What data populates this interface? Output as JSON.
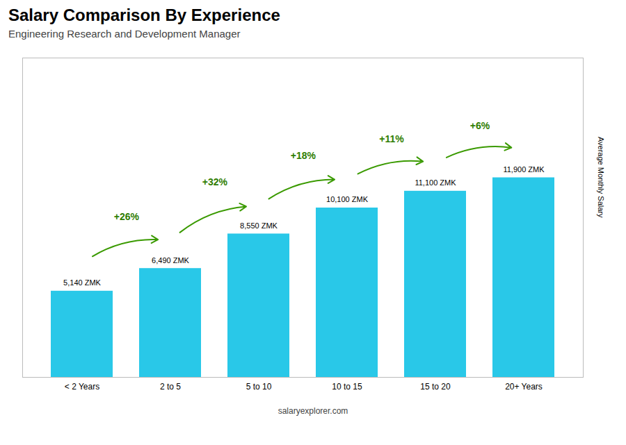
{
  "chart_data": {
    "type": "bar",
    "title": "Salary Comparison By Experience",
    "subtitle": "Engineering Research and Development Manager",
    "ylabel": "Average Monthly Salary",
    "footer": "salaryexplorer.com",
    "categories": [
      "< 2 Years",
      "2 to 5",
      "5 to 10",
      "10 to 15",
      "15 to 20",
      "20+ Years"
    ],
    "values": [
      5140,
      6490,
      8550,
      10100,
      11100,
      11900
    ],
    "value_labels": [
      "5,140 ZMK",
      "6,490 ZMK",
      "8,550 ZMK",
      "10,100 ZMK",
      "11,100 ZMK",
      "11,900 ZMK"
    ],
    "data_labels": true,
    "annotations": [
      "+26%",
      "+32%",
      "+18%",
      "+11%",
      "+6%"
    ],
    "color": "#29c8e8",
    "ylim": [
      0,
      19040
    ],
    "tick_labels": "x",
    "grid": false
  }
}
